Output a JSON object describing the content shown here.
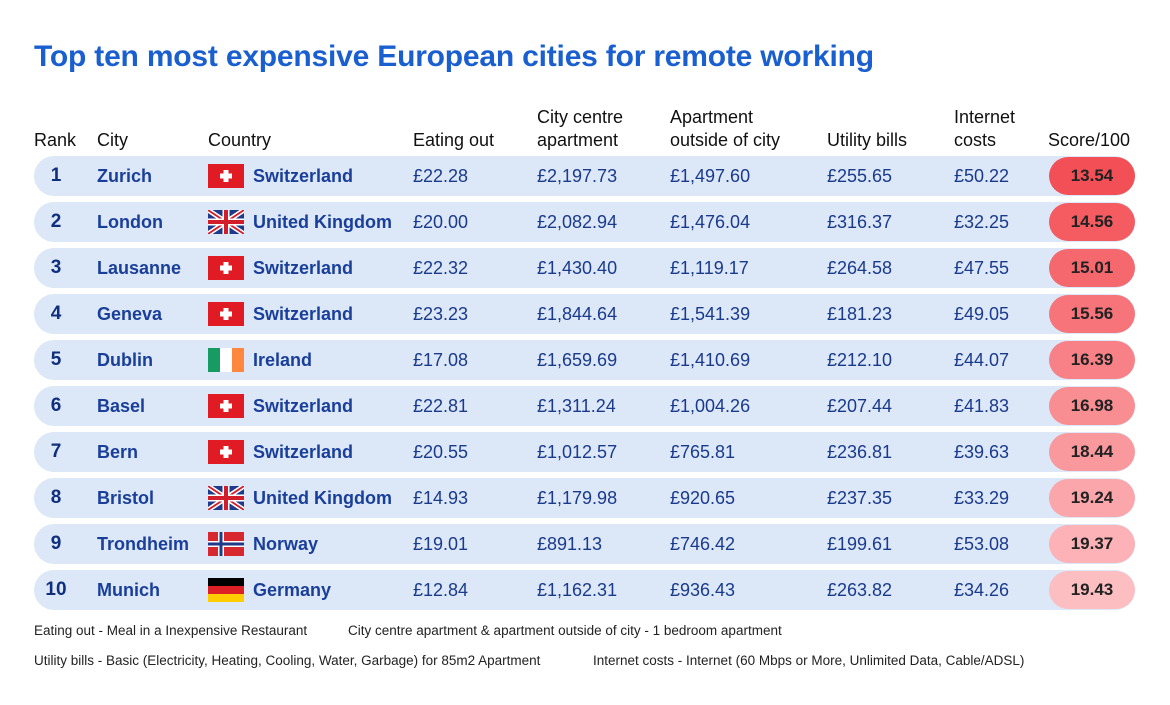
{
  "title": "Top ten most expensive European cities for remote working",
  "headers": {
    "rank": [
      "Rank"
    ],
    "city": [
      "City"
    ],
    "country": [
      "Country"
    ],
    "eating": [
      "Eating out"
    ],
    "centre": [
      "City centre",
      "apartment"
    ],
    "outside": [
      "Apartment",
      "outside of city"
    ],
    "utility": [
      "Utility bills"
    ],
    "internet": [
      "Internet",
      "costs"
    ],
    "score": [
      "Score/100"
    ]
  },
  "chart_data": {
    "type": "table",
    "title": "Top ten most expensive European cities for remote working",
    "columns": [
      "Rank",
      "City",
      "Country",
      "Eating out",
      "City centre apartment",
      "Apartment outside of city",
      "Utility bills",
      "Internet costs",
      "Score/100"
    ],
    "rows": [
      {
        "rank": "1",
        "city": "Zurich",
        "flag": "switzerland-flag-icon",
        "country": "Switzerland",
        "eating": "£22.28",
        "centre": "£2,197.73",
        "outside": "£1,497.60",
        "utility": "£255.65",
        "internet": "£50.22",
        "score": "13.54",
        "score_color": "#f25056"
      },
      {
        "rank": "2",
        "city": "London",
        "flag": "united-kingdom-flag-icon",
        "country": "United Kingdom",
        "eating": "£20.00",
        "centre": "£2,082.94",
        "outside": "£1,476.04",
        "utility": "£316.37",
        "internet": "£32.25",
        "score": "14.56",
        "score_color": "#f45c62"
      },
      {
        "rank": "3",
        "city": "Lausanne",
        "flag": "switzerland-flag-icon",
        "country": "Switzerland",
        "eating": "£22.32",
        "centre": "£1,430.40",
        "outside": "£1,119.17",
        "utility": "£264.58",
        "internet": "£47.55",
        "score": "15.01",
        "score_color": "#f5686e"
      },
      {
        "rank": "4",
        "city": "Geneva",
        "flag": "switzerland-flag-icon",
        "country": "Switzerland",
        "eating": "£23.23",
        "centre": "£1,844.64",
        "outside": "£1,541.39",
        "utility": "£181.23",
        "internet": "£49.05",
        "score": "15.56",
        "score_color": "#f6747a"
      },
      {
        "rank": "5",
        "city": "Dublin",
        "flag": "ireland-flag-icon",
        "country": "Ireland",
        "eating": "£17.08",
        "centre": "£1,659.69",
        "outside": "£1,410.69",
        "utility": "£212.10",
        "internet": "£44.07",
        "score": "16.39",
        "score_color": "#f78187"
      },
      {
        "rank": "6",
        "city": "Basel",
        "flag": "switzerland-flag-icon",
        "country": "Switzerland",
        "eating": "£22.81",
        "centre": "£1,311.24",
        "outside": "£1,004.26",
        "utility": "£207.44",
        "internet": "£41.83",
        "score": "16.98",
        "score_color": "#f88d92"
      },
      {
        "rank": "7",
        "city": "Bern",
        "flag": "switzerland-flag-icon",
        "country": "Switzerland",
        "eating": "£20.55",
        "centre": "£1,012.57",
        "outside": "£765.81",
        "utility": "£236.81",
        "internet": "£39.63",
        "score": "18.44",
        "score_color": "#f9999e"
      },
      {
        "rank": "8",
        "city": "Bristol",
        "flag": "united-kingdom-flag-icon",
        "country": "United Kingdom",
        "eating": "£14.93",
        "centre": "£1,179.98",
        "outside": "£920.65",
        "utility": "£237.35",
        "internet": "£33.29",
        "score": "19.24",
        "score_color": "#fba6aa"
      },
      {
        "rank": "9",
        "city": "Trondheim",
        "flag": "norway-flag-icon",
        "country": "Norway",
        "eating": "£19.01",
        "centre": "£891.13",
        "outside": "£746.42",
        "utility": "£199.61",
        "internet": "£53.08",
        "score": "19.37",
        "score_color": "#fcb2b6"
      },
      {
        "rank": "10",
        "city": "Munich",
        "flag": "germany-flag-icon",
        "country": "Germany",
        "eating": "£12.84",
        "centre": "£1,162.31",
        "outside": "£936.43",
        "utility": "£263.82",
        "internet": "£34.26",
        "score": "19.43",
        "score_color": "#fdbec2"
      }
    ]
  },
  "notes": {
    "eating": "Eating out - Meal in a Inexpensive Restaurant",
    "apartment": "City centre apartment & apartment outside of city - 1 bedroom apartment",
    "utility": "Utility bills - Basic (Electricity, Heating, Cooling, Water, Garbage) for 85m2 Apartment",
    "internet": "Internet costs - Internet (60 Mbps or More, Unlimited Data, Cable/ADSL)"
  }
}
